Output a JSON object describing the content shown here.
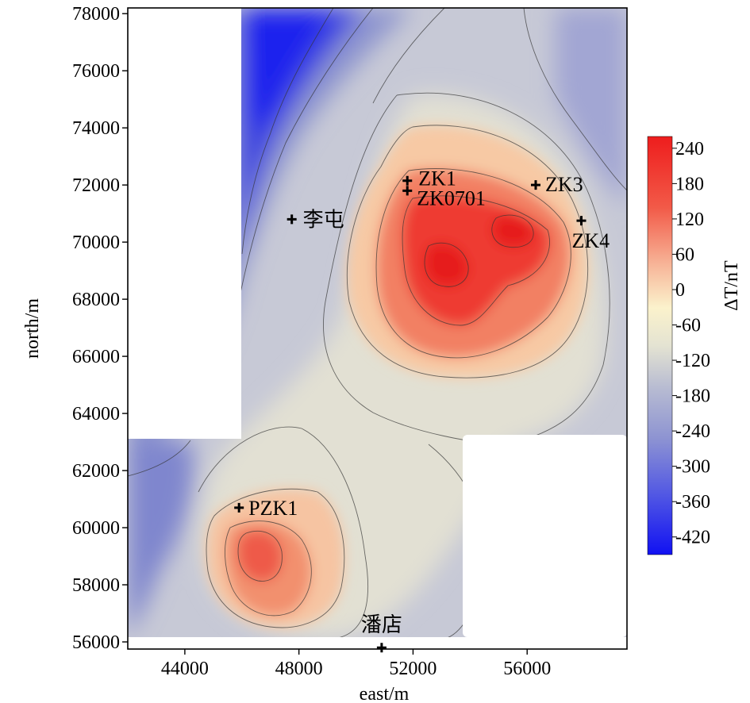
{
  "map": {
    "x_axis_label": "east/m",
    "y_axis_label": "north/m",
    "x_ticks": [
      "44000",
      "48000",
      "52000",
      "56000"
    ],
    "y_ticks": [
      "56000",
      "58000",
      "60000",
      "62000",
      "64000",
      "66000",
      "68000",
      "70000",
      "72000",
      "74000",
      "76000",
      "78000"
    ],
    "x_range": [
      42000,
      59500
    ],
    "y_range": [
      55750,
      78200
    ],
    "colors": {
      "low": "#1515ee",
      "mid_low": "#9098cc",
      "neutral": "#ecebd6",
      "zero": "#f9f4cf",
      "mid_high": "#f3a88f",
      "high": "#ee2222",
      "contour": "#333333",
      "mask": "#ffffff"
    }
  },
  "stations": [
    {
      "id": "zk1",
      "label": "ZK1",
      "east": 51800,
      "north": 72150
    },
    {
      "id": "zk0701",
      "label": "ZK0701",
      "east": 51800,
      "north": 71800
    },
    {
      "id": "zk3",
      "label": "ZK3",
      "east": 56300,
      "north": 72000
    },
    {
      "id": "zk4",
      "label": "ZK4",
      "east": 57900,
      "north": 70750
    },
    {
      "id": "litun",
      "label": "李屯",
      "east": 47750,
      "north": 70800
    },
    {
      "id": "pzk1",
      "label": "PZK1",
      "east": 45900,
      "north": 60700
    },
    {
      "id": "pandian",
      "label": "潘店",
      "east": 50900,
      "north": 55800
    }
  ],
  "colorbar": {
    "title": "ΔT/nT",
    "ticks": [
      "240",
      "180",
      "120",
      "60",
      "0",
      "-60",
      "-120",
      "-180",
      "-240",
      "-300",
      "-360",
      "-420"
    ],
    "range": [
      -450,
      260
    ]
  }
}
